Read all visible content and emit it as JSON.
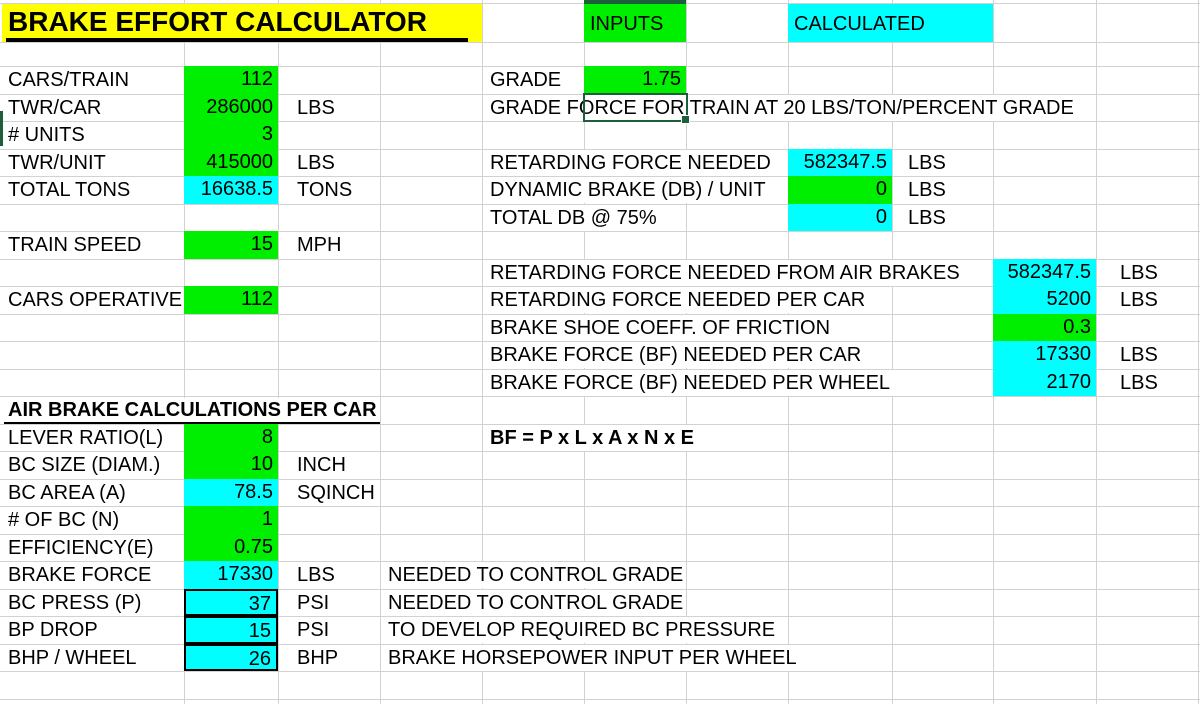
{
  "header": {
    "title": "BRAKE EFFORT CALCULATOR",
    "inputs_legend": "INPUTS",
    "calculated_legend": "CALCULATED"
  },
  "colors": {
    "input_bg": "#00ef00",
    "calculated_bg": "#00ffff",
    "title_bg": "#ffff00",
    "selection_green": "#1d5e3b",
    "gridline": "#d2d2d2"
  },
  "train_params": {
    "rows": [
      {
        "label": "CARS/TRAIN",
        "value": "112",
        "unit": "",
        "kind": "input"
      },
      {
        "label": "TWR/CAR",
        "value": "286000",
        "unit": "LBS",
        "kind": "input"
      },
      {
        "label": "# UNITS",
        "value": "3",
        "unit": "",
        "kind": "input"
      },
      {
        "label": "TWR/UNIT",
        "value": "415000",
        "unit": "LBS",
        "kind": "input"
      },
      {
        "label": "TOTAL TONS",
        "value": "16638.5",
        "unit": "TONS",
        "kind": "calculated"
      },
      {
        "label": "TRAIN SPEED",
        "value": "15",
        "unit": "MPH",
        "kind": "input"
      },
      {
        "label": "CARS OPERATIVE",
        "value": "112",
        "unit": "",
        "kind": "input"
      }
    ]
  },
  "grade": {
    "label": "GRADE",
    "value": "1.75",
    "note": "GRADE FORCE FOR TRAIN AT 20 LBS/TON/PERCENT GRADE"
  },
  "retarding": {
    "rows": [
      {
        "label": "RETARDING FORCE NEEDED",
        "value": "582347.5",
        "unit": "LBS",
        "kind": "calculated"
      },
      {
        "label": "DYNAMIC BRAKE (DB) / UNIT",
        "value": "0",
        "unit": "LBS",
        "kind": "input"
      },
      {
        "label": "TOTAL DB @ 75%",
        "value": "0",
        "unit": "LBS",
        "kind": "calculated"
      }
    ]
  },
  "air_needs": {
    "rows": [
      {
        "label": "RETARDING FORCE NEEDED FROM AIR BRAKES",
        "value": "582347.5",
        "unit": "LBS",
        "kind": "calculated"
      },
      {
        "label": "RETARDING FORCE NEEDED PER CAR",
        "value": "5200",
        "unit": "LBS",
        "kind": "calculated"
      },
      {
        "label": "BRAKE SHOE COEFF. OF FRICTION",
        "value": "0.3",
        "unit": "",
        "kind": "input"
      },
      {
        "label": "BRAKE FORCE (BF) NEEDED PER CAR",
        "value": "17330",
        "unit": "LBS",
        "kind": "calculated"
      },
      {
        "label": "BRAKE FORCE (BF) NEEDED PER WHEEL",
        "value": "2170",
        "unit": "LBS",
        "kind": "calculated"
      }
    ]
  },
  "calc": {
    "header": "AIR BRAKE CALCULATIONS PER CAR",
    "formula": "BF = P x L x A x N x E",
    "rows": [
      {
        "label": "LEVER RATIO(L)",
        "value": "8",
        "unit": "",
        "note": "",
        "kind": "input"
      },
      {
        "label": "BC SIZE (DIAM.)",
        "value": "10",
        "unit": "INCH",
        "note": "",
        "kind": "input"
      },
      {
        "label": "BC AREA (A)",
        "value": "78.5",
        "unit": "SQINCH",
        "note": "",
        "kind": "calculated"
      },
      {
        "label": "# OF BC (N)",
        "value": "1",
        "unit": "",
        "note": "",
        "kind": "input"
      },
      {
        "label": "EFFICIENCY(E)",
        "value": "0.75",
        "unit": "",
        "note": "",
        "kind": "input"
      },
      {
        "label": "BRAKE FORCE",
        "value": "17330",
        "unit": "LBS",
        "note": "NEEDED TO CONTROL GRADE",
        "kind": "calculated"
      },
      {
        "label": "BC PRESS (P)",
        "value": "37",
        "unit": "PSI",
        "note": "NEEDED TO CONTROL GRADE",
        "kind": "calculated-boxed"
      },
      {
        "label": "BP DROP",
        "value": "15",
        "unit": "PSI",
        "note": "TO DEVELOP REQUIRED BC PRESSURE",
        "kind": "calculated-boxed"
      },
      {
        "label": "BHP / WHEEL",
        "value": "26",
        "unit": "BHP",
        "note": "BRAKE HORSEPOWER INPUT PER WHEEL",
        "kind": "calculated-boxed"
      }
    ]
  }
}
